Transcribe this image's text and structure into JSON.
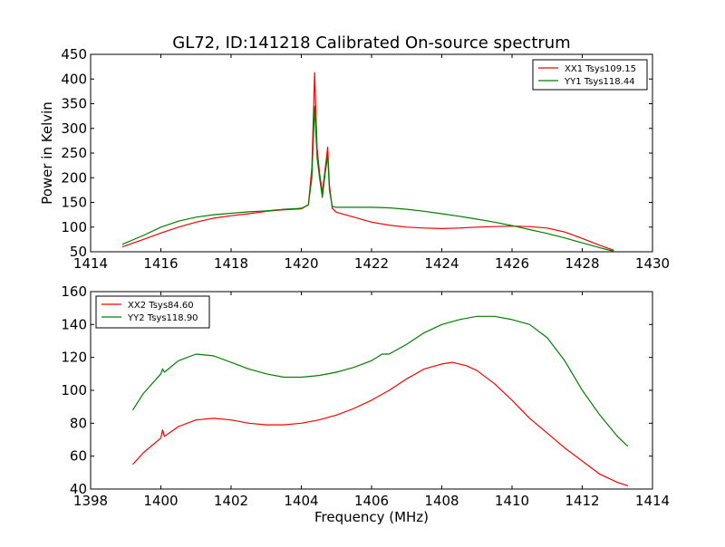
{
  "figure_title": "GL72, ID:141218 Calibrated On-source spectrum",
  "colors": {
    "red": "#ff0000",
    "green": "#007f00",
    "axis": "#000000"
  },
  "chart_data": [
    {
      "type": "line",
      "title": "GL72, ID:141218 Calibrated On-source spectrum",
      "xlabel": "",
      "ylabel": "Power in Kelvin",
      "xlim": [
        1414,
        1430
      ],
      "ylim": [
        50,
        450
      ],
      "xticks": [
        1414,
        1416,
        1418,
        1420,
        1422,
        1424,
        1426,
        1428,
        1430
      ],
      "yticks": [
        50,
        100,
        150,
        200,
        250,
        300,
        350,
        400,
        450
      ],
      "grid": false,
      "legend_position": "top-right",
      "series": [
        {
          "name": "XX1 Tsys109.15",
          "color": "#ff0000",
          "x": [
            1414.9,
            1415.5,
            1416,
            1416.5,
            1417,
            1417.5,
            1418,
            1418.5,
            1419,
            1419.5,
            1420,
            1420.2,
            1420.3,
            1420.38,
            1420.45,
            1420.52,
            1420.6,
            1420.68,
            1420.75,
            1420.8,
            1420.88,
            1421,
            1421.5,
            1422,
            1422.5,
            1423,
            1423.5,
            1424,
            1424.5,
            1425,
            1425.5,
            1426,
            1426.5,
            1427,
            1427.5,
            1428,
            1428.5,
            1428.9
          ],
          "y": [
            60,
            75,
            88,
            100,
            110,
            118,
            123,
            127,
            132,
            135,
            137,
            145,
            220,
            413,
            260,
            210,
            170,
            220,
            262,
            185,
            138,
            130,
            120,
            110,
            104,
            100,
            98,
            97,
            98,
            100,
            101,
            102,
            101,
            98,
            90,
            77,
            63,
            53
          ]
        },
        {
          "name": "YY1 Tsys118.44",
          "color": "#007f00",
          "x": [
            1414.9,
            1415.5,
            1416,
            1416.5,
            1417,
            1417.5,
            1418,
            1418.5,
            1419,
            1419.5,
            1420,
            1420.2,
            1420.3,
            1420.38,
            1420.45,
            1420.52,
            1420.6,
            1420.68,
            1420.75,
            1420.8,
            1420.88,
            1421,
            1421.5,
            1422,
            1422.5,
            1423,
            1423.5,
            1424,
            1424.5,
            1425,
            1425.5,
            1426,
            1426.5,
            1427,
            1427.5,
            1428,
            1428.5,
            1428.9
          ],
          "y": [
            65,
            83,
            100,
            112,
            120,
            125,
            128,
            131,
            133,
            136,
            138,
            145,
            200,
            345,
            240,
            200,
            160,
            210,
            245,
            175,
            142,
            140,
            140,
            140,
            139,
            136,
            132,
            127,
            122,
            116,
            110,
            103,
            95,
            87,
            78,
            68,
            58,
            51
          ]
        }
      ]
    },
    {
      "type": "line",
      "title": "",
      "xlabel": "Frequency (MHz)",
      "ylabel": "",
      "xlim": [
        1398,
        1414
      ],
      "ylim": [
        40,
        160
      ],
      "xticks": [
        1398,
        1400,
        1402,
        1404,
        1406,
        1408,
        1410,
        1412,
        1414
      ],
      "yticks": [
        40,
        60,
        80,
        100,
        120,
        140,
        160
      ],
      "grid": false,
      "legend_position": "top-left",
      "series": [
        {
          "name": "XX2 Tsys84.60",
          "color": "#ff0000",
          "x": [
            1399.2,
            1399.5,
            1400,
            1400.05,
            1400.1,
            1400.5,
            1401,
            1401.5,
            1402,
            1402.5,
            1403,
            1403.5,
            1404,
            1404.5,
            1405,
            1405.5,
            1406,
            1406.5,
            1407,
            1407.5,
            1408,
            1408.3,
            1408.7,
            1409,
            1409.5,
            1410,
            1410.5,
            1411,
            1411.5,
            1412,
            1412.5,
            1413,
            1413.3
          ],
          "y": [
            55,
            62,
            71,
            76,
            72,
            78,
            82,
            83,
            82,
            80,
            79,
            79,
            80,
            82,
            85,
            89,
            94,
            100,
            107,
            113,
            116,
            117,
            115,
            112,
            104,
            94,
            83,
            74,
            65,
            57,
            49,
            44,
            42
          ]
        },
        {
          "name": "YY2 Tsys118.90",
          "color": "#007f00",
          "x": [
            1399.2,
            1399.5,
            1400,
            1400.05,
            1400.1,
            1400.5,
            1401,
            1401.5,
            1402,
            1402.5,
            1403,
            1403.5,
            1404,
            1404.5,
            1405,
            1405.5,
            1406,
            1406.3,
            1406.5,
            1407,
            1407.5,
            1408,
            1408.5,
            1409,
            1409.5,
            1410,
            1410.5,
            1411,
            1411.5,
            1412,
            1412.5,
            1413,
            1413.3
          ],
          "y": [
            88,
            98,
            110,
            113,
            111,
            118,
            122,
            121,
            117,
            113,
            110,
            108,
            108,
            109,
            111,
            114,
            118,
            122,
            122,
            128,
            135,
            140,
            143,
            145,
            145,
            143,
            140,
            132,
            118,
            100,
            85,
            72,
            66
          ]
        }
      ]
    }
  ]
}
